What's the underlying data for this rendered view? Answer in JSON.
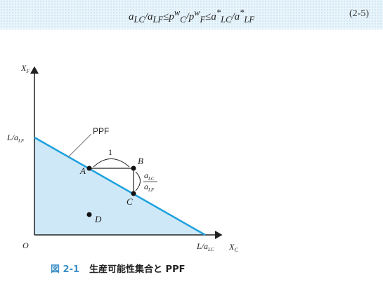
{
  "equation": {
    "text": "aLC/aLF≤pwC/pwF≤a*LC/a*LF",
    "number": "(2-5)"
  },
  "figure": {
    "y_axis_label": "X",
    "y_axis_sub": "F",
    "x_axis_label": "X",
    "x_axis_sub": "C",
    "origin_label": "O",
    "y_intercept_label": "L/a",
    "y_intercept_sub": "LF",
    "x_intercept_label": "L/a",
    "x_intercept_sub": "LC",
    "ppf_label": "PPF",
    "step_label": "1",
    "slope_numerator": "a",
    "slope_numerator_sub": "LC",
    "slope_denominator": "a",
    "slope_denominator_sub": "LF",
    "points": {
      "A": "A",
      "B": "B",
      "C": "C",
      "D": "D"
    },
    "colors": {
      "region": "#cfe8f7",
      "ppf_line": "#1ea1dd",
      "axis": "#222222"
    }
  },
  "caption": {
    "figure_number": "図 2-1",
    "title": "生産可能性集合と PPF"
  }
}
